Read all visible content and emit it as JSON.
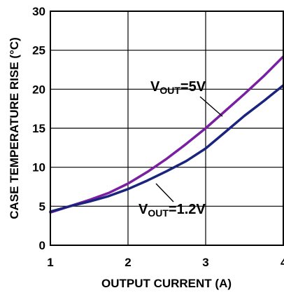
{
  "chart_data": {
    "type": "line",
    "xlabel": "OUTPUT CURRENT (A)",
    "ylabel": "CASE TEMPERATURE RISE (°C)",
    "xlim": [
      1,
      4
    ],
    "ylim": [
      0,
      30
    ],
    "xticks": [
      "1",
      "2",
      "3",
      "4"
    ],
    "yticks": [
      "0",
      "5",
      "10",
      "15",
      "20",
      "25",
      "30"
    ],
    "grid": true,
    "series": [
      {
        "label_main": "V",
        "label_sub": "OUT",
        "label_rest": "=5V",
        "color": "#7b1fa2",
        "x": [
          1.0,
          1.25,
          1.5,
          1.75,
          2.0,
          2.25,
          2.5,
          2.75,
          3.0,
          3.25,
          3.5,
          3.75,
          4.0
        ],
        "y": [
          4.2,
          5.0,
          5.8,
          6.7,
          7.9,
          9.4,
          11.1,
          13.0,
          15.0,
          17.2,
          19.4,
          21.7,
          24.2
        ]
      },
      {
        "label_main": "V",
        "label_sub": "OUT",
        "label_rest": "=1.2V",
        "color": "#1a237e",
        "x": [
          1.0,
          1.25,
          1.5,
          1.75,
          2.0,
          2.25,
          2.5,
          2.75,
          3.0,
          3.25,
          3.5,
          3.75,
          4.0
        ],
        "y": [
          4.3,
          5.0,
          5.6,
          6.3,
          7.2,
          8.3,
          9.5,
          10.8,
          12.4,
          14.5,
          16.6,
          18.5,
          20.5
        ]
      }
    ]
  }
}
